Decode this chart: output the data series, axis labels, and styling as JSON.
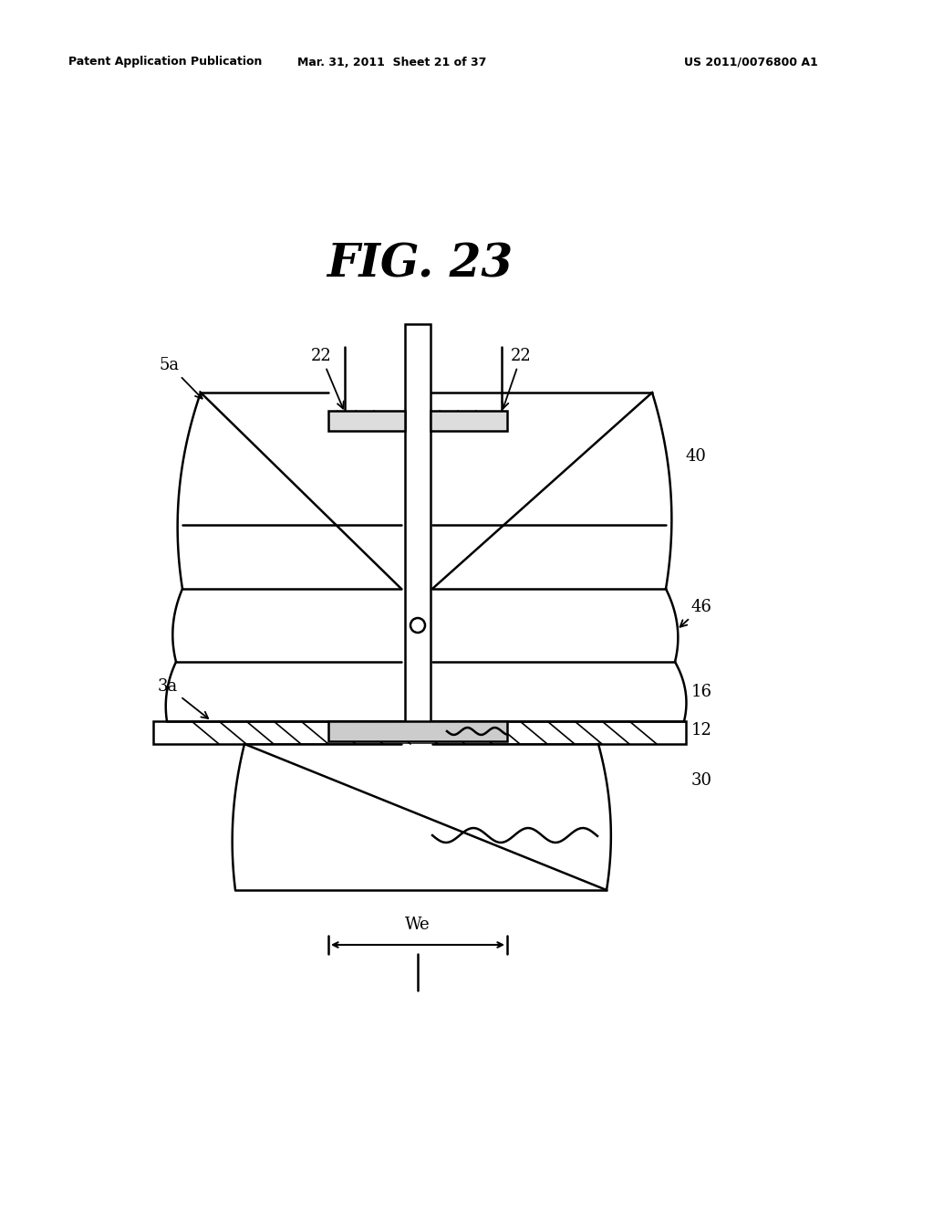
{
  "title": "FIG. 23",
  "header_left": "Patent Application Publication",
  "header_mid": "Mar. 31, 2011  Sheet 21 of 37",
  "header_right": "US 2011/0076800 A1",
  "bg_color": "#ffffff"
}
